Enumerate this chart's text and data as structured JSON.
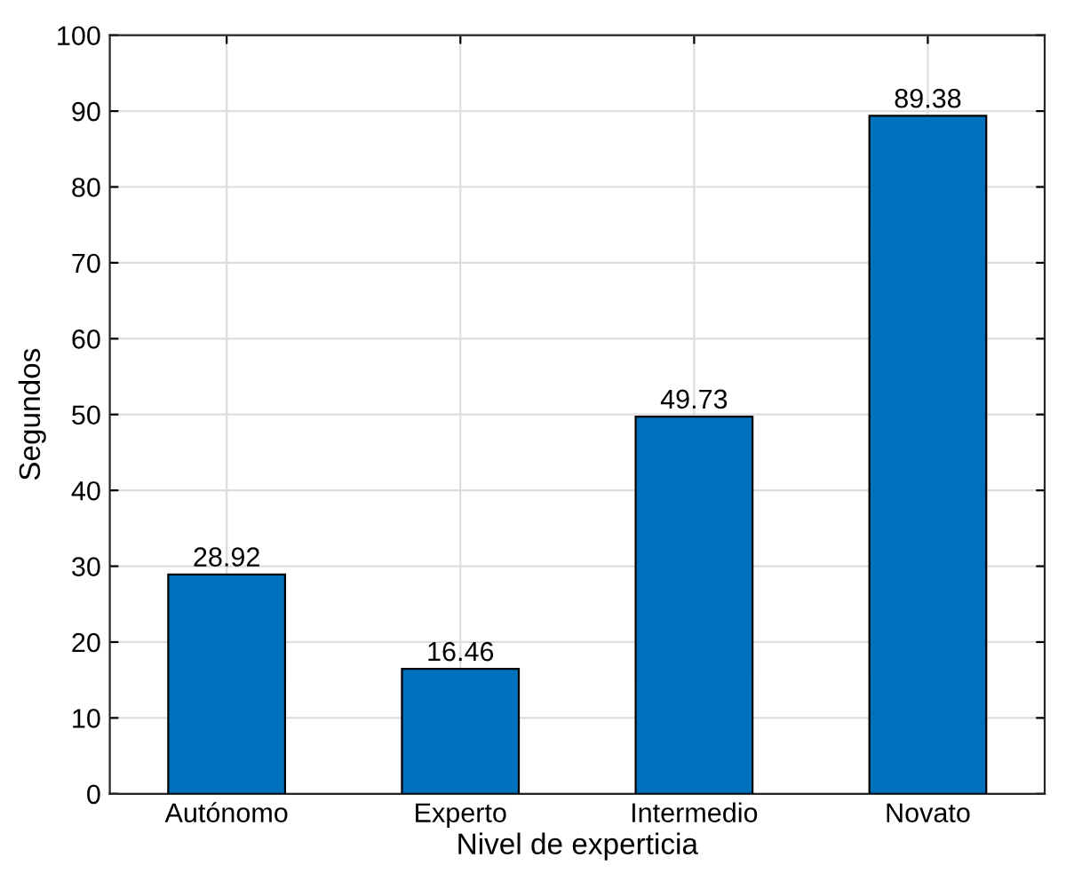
{
  "chart_data": {
    "type": "bar",
    "xlabel": "Nivel de experticia",
    "ylabel": "Segundos",
    "categories": [
      "Autónomo",
      "Experto",
      "Intermedio",
      "Novato"
    ],
    "values": [
      28.92,
      16.46,
      49.73,
      89.38
    ],
    "color": "#0072bd",
    "ylim": [
      0,
      100
    ],
    "yticks": [
      0,
      10,
      20,
      30,
      40,
      50,
      60,
      70,
      80,
      90,
      100
    ],
    "grid": true,
    "data_labels": true
  }
}
